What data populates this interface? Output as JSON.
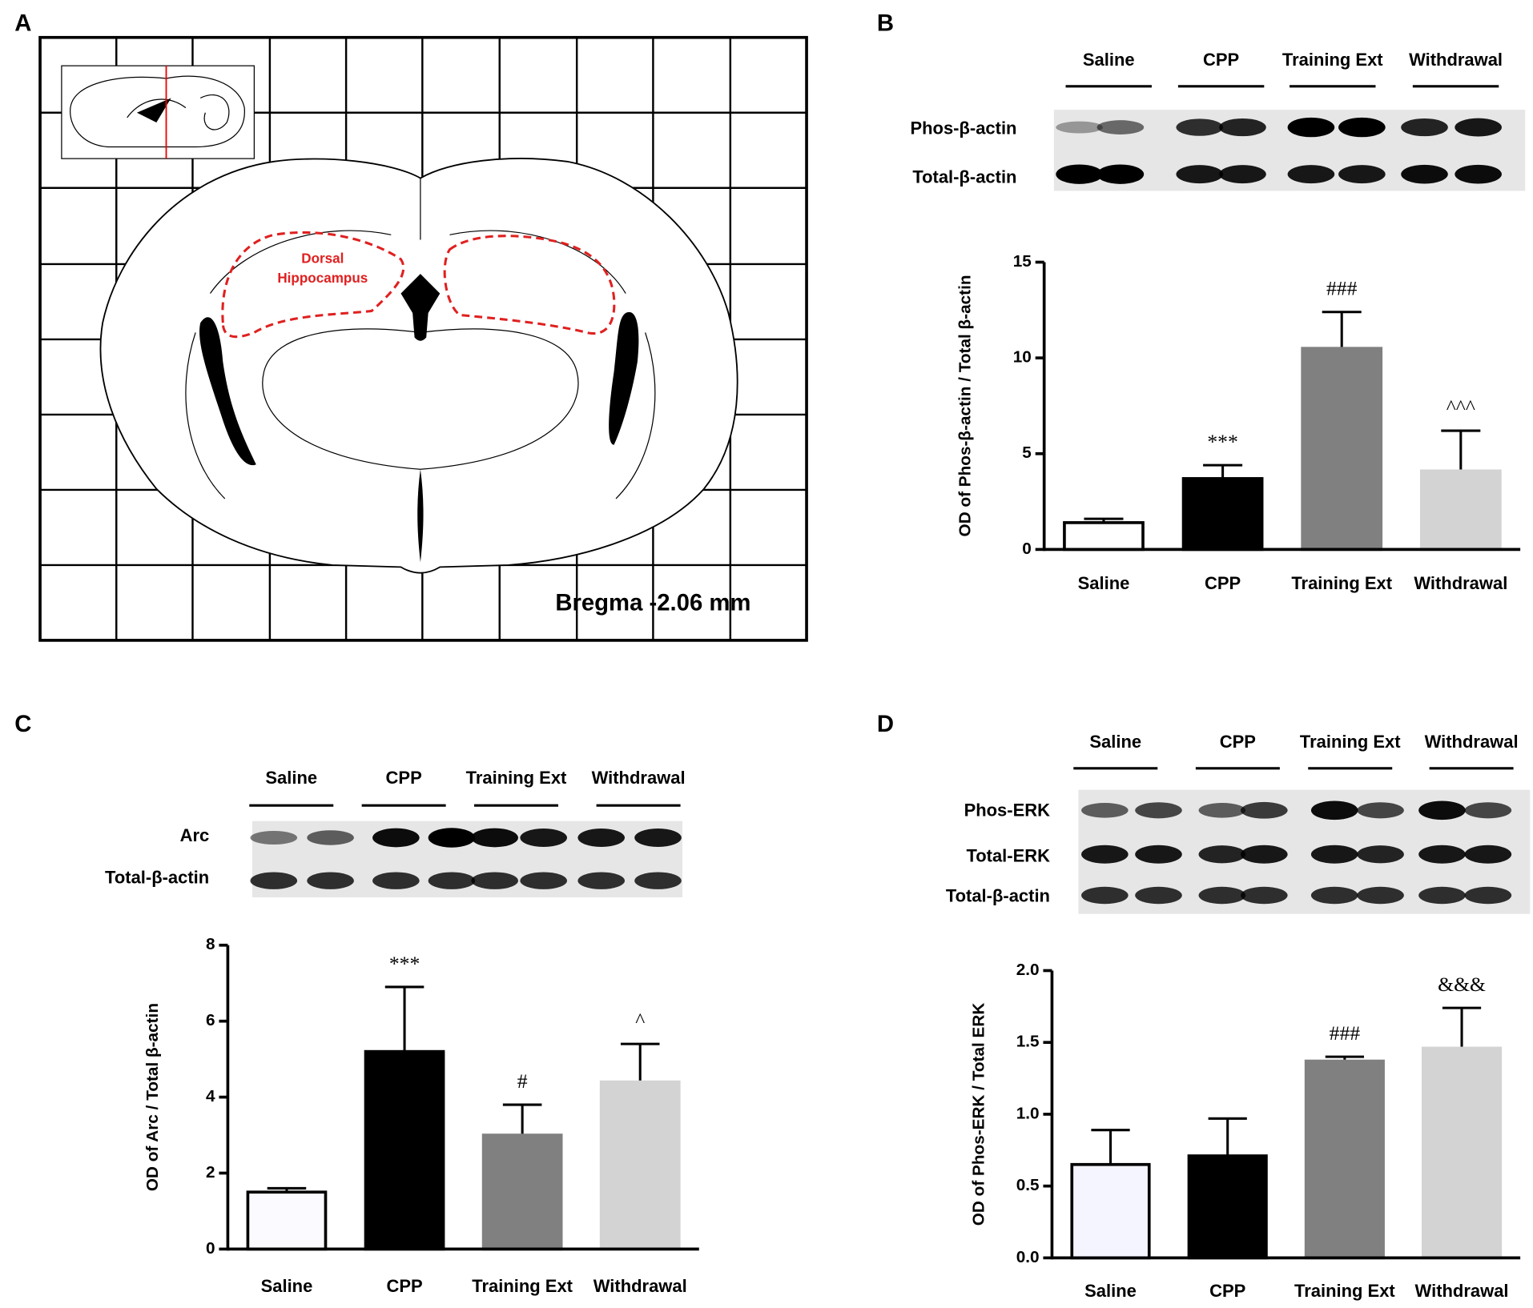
{
  "figure": {
    "panel_labels": [
      "A",
      "B",
      "C",
      "D"
    ],
    "panel_a": {
      "hippocampus_label": [
        "Dorsal",
        "Hippocampus"
      ],
      "bregma": "Bregma -2.06 mm"
    },
    "blots": [
      {
        "groups": [
          "Saline",
          "CPP",
          "Training Ext",
          "Withdrawal"
        ],
        "rows": [
          "Phos-β-actin",
          "Total-β-actin"
        ]
      },
      {
        "groups": [
          "Saline",
          "CPP",
          "Training Ext",
          "Withdrawal"
        ],
        "rows": [
          "Arc",
          "Total-β-actin"
        ]
      },
      {
        "groups": [
          "Saline",
          "CPP",
          "Training Ext",
          "Withdrawal"
        ],
        "rows": [
          "Phos-ERK",
          "Total-ERK",
          "Total-β-actin"
        ]
      }
    ]
  },
  "chart_data": [
    {
      "type": "bar",
      "y_label": "OD of Phos-β-actin / Total β-actin",
      "categories": [
        "Saline",
        "CPP",
        "Training Ext",
        "Withdrawal"
      ],
      "values": [
        1.4,
        3.7,
        10.5,
        4.1
      ],
      "errors": [
        0.2,
        0.7,
        1.9,
        2.1
      ],
      "annotations": [
        null,
        "***",
        "###",
        "^^^"
      ],
      "colors": [
        "#ffffff",
        "#000000",
        "#808080",
        "#d3d3d3"
      ],
      "edge_colors": [
        "#000000",
        "#000000",
        "#808080",
        "#d3d3d3"
      ],
      "ylim": [
        0,
        15
      ],
      "yticks": [
        0,
        5,
        10,
        15
      ]
    },
    {
      "type": "bar",
      "y_label": "OD of Arc / Total β-actin",
      "categories": [
        "Saline",
        "CPP",
        "Training Ext",
        "Withdrawal"
      ],
      "values": [
        1.5,
        5.2,
        3.0,
        4.4
      ],
      "errors": [
        0.1,
        1.7,
        0.8,
        1.0
      ],
      "annotations": [
        null,
        "***",
        "#",
        "^"
      ],
      "colors": [
        "#fafaff",
        "#000000",
        "#808080",
        "#d3d3d3"
      ],
      "edge_colors": [
        "#000000",
        "#000000",
        "#808080",
        "#d3d3d3"
      ],
      "ylim": [
        0,
        8
      ],
      "yticks": [
        0,
        2,
        4,
        6,
        8
      ]
    },
    {
      "type": "bar",
      "y_label": "OD of Phos-ERK / Total ERK",
      "categories": [
        "Saline",
        "CPP",
        "Training Ext",
        "Withdrawal"
      ],
      "values": [
        0.65,
        0.71,
        1.37,
        1.46
      ],
      "errors": [
        0.24,
        0.26,
        0.03,
        0.28
      ],
      "annotations": [
        null,
        null,
        "###",
        "&&&"
      ],
      "colors": [
        "#f5f5ff",
        "#000000",
        "#808080",
        "#d3d3d3"
      ],
      "edge_colors": [
        "#000000",
        "#000000",
        "#808080",
        "#d3d3d3"
      ],
      "ylim": [
        0,
        2
      ],
      "yticks": [
        {
          "value": 0,
          "label": "0.0"
        },
        {
          "value": 0.5,
          "label": "0.5"
        },
        {
          "value": 1,
          "label": "1.0"
        },
        {
          "value": 1.5,
          "label": "1.5"
        },
        {
          "value": 2,
          "label": "2.0"
        }
      ]
    }
  ]
}
